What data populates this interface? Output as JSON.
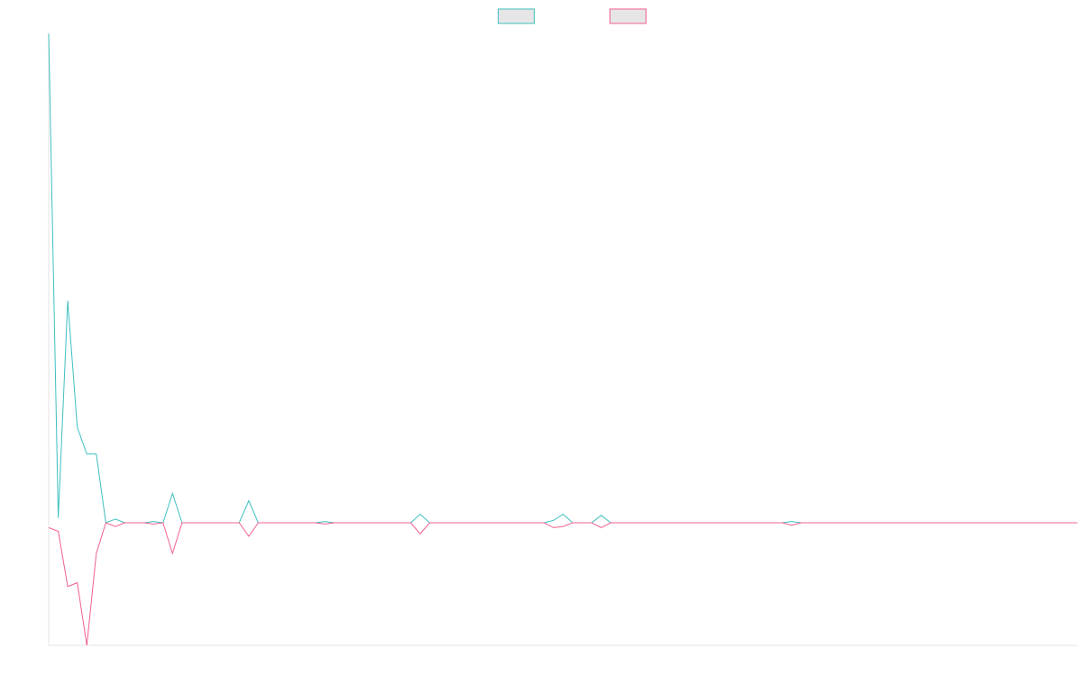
{
  "chart_data": {
    "type": "line",
    "title": "",
    "xlabel": "",
    "ylabel": "",
    "grid": false,
    "legend_placement": "top-center",
    "ylim": [
      -1.0,
      4.0
    ],
    "x": [
      0,
      1,
      2,
      3,
      4,
      5,
      6,
      7,
      8,
      9,
      10,
      11,
      12,
      13,
      14,
      15,
      16,
      17,
      18,
      19,
      20,
      21,
      22,
      23,
      24,
      25,
      26,
      27,
      28,
      29,
      30,
      31,
      32,
      33,
      34,
      35,
      36,
      37,
      38,
      39,
      40,
      41,
      42,
      43,
      44,
      45,
      46,
      47,
      48,
      49,
      50,
      51,
      52,
      53,
      54,
      55,
      56,
      57,
      58,
      59,
      60,
      61,
      62,
      63,
      64,
      65,
      66,
      67,
      68,
      69,
      70,
      71,
      72,
      73,
      74,
      75,
      76,
      77,
      78,
      79,
      80,
      81,
      82,
      83,
      84,
      85,
      86,
      87,
      88,
      89,
      90,
      91,
      92,
      93,
      94,
      95,
      96,
      97,
      98,
      99,
      100,
      101,
      102,
      103,
      104,
      105,
      106,
      107,
      108
    ],
    "series": [
      {
        "name": "",
        "color": "#3fbfbf",
        "fill": "#e6e6e6",
        "values": [
          3.99,
          0.04,
          1.81,
          0.78,
          0.56,
          0.56,
          0,
          0.03,
          0,
          0,
          0,
          0.01,
          0,
          0.24,
          0,
          0,
          0,
          0,
          0,
          0,
          0,
          0.18,
          0,
          0,
          0,
          0,
          0,
          0,
          0,
          0.01,
          0,
          0,
          0,
          0,
          0,
          0,
          0,
          0,
          0,
          0.07,
          0,
          0,
          0,
          0,
          0,
          0,
          0,
          0,
          0,
          0,
          0,
          0,
          0,
          0.02,
          0.07,
          0,
          0,
          0,
          0.06,
          0,
          0,
          0,
          0,
          0,
          0,
          0,
          0,
          0,
          0,
          0,
          0,
          0,
          0,
          0,
          0,
          0,
          0,
          0,
          0.01,
          0,
          0,
          0,
          0,
          0,
          0,
          0,
          0,
          0,
          0,
          0,
          0,
          0,
          0,
          0,
          0,
          0,
          0,
          0,
          0,
          0,
          0,
          0,
          0,
          0,
          0,
          0,
          0,
          0,
          0
        ]
      },
      {
        "name": "",
        "color": "#f06090",
        "fill": "#e6e6e6",
        "values": [
          -0.04,
          -0.07,
          -0.52,
          -0.49,
          -1.0,
          -0.25,
          0,
          -0.03,
          0,
          0,
          0,
          -0.01,
          0,
          -0.25,
          0,
          0,
          0,
          0,
          0,
          0,
          0,
          -0.11,
          0,
          0,
          0,
          0,
          0,
          0,
          0,
          -0.01,
          0,
          0,
          0,
          0,
          0,
          0,
          0,
          0,
          0,
          -0.09,
          0,
          0,
          0,
          0,
          0,
          0,
          0,
          0,
          0,
          0,
          0,
          0,
          0,
          -0.04,
          -0.03,
          0,
          0,
          0,
          -0.04,
          0,
          0,
          0,
          0,
          0,
          0,
          0,
          0,
          0,
          0,
          0,
          0,
          0,
          0,
          0,
          0,
          0,
          0,
          0,
          -0.02,
          0,
          0,
          0,
          0,
          0,
          0,
          0,
          0,
          0,
          0,
          0,
          0,
          0,
          0,
          0,
          0,
          0,
          0,
          0,
          0,
          0,
          0,
          0,
          0,
          0,
          0,
          0,
          0,
          0,
          0
        ]
      }
    ]
  }
}
